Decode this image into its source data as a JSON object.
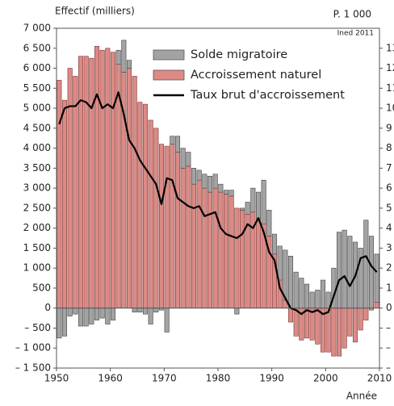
{
  "chart_data": {
    "type": "bar",
    "y_label": "Effectif (milliers)",
    "y2_label": "P. 1 000",
    "x_label": "Année",
    "source": "Ined 2011",
    "x": [
      1950,
      1951,
      1952,
      1953,
      1954,
      1955,
      1956,
      1957,
      1958,
      1959,
      1960,
      1961,
      1962,
      1963,
      1964,
      1965,
      1966,
      1967,
      1968,
      1969,
      1970,
      1971,
      1972,
      1973,
      1974,
      1975,
      1976,
      1977,
      1978,
      1979,
      1980,
      1981,
      1982,
      1983,
      1984,
      1985,
      1986,
      1987,
      1988,
      1989,
      1990,
      1991,
      1992,
      1993,
      1994,
      1995,
      1996,
      1997,
      1998,
      1999,
      2000,
      2001,
      2002,
      2003,
      2004,
      2005,
      2006,
      2007,
      2008,
      2009
    ],
    "series": [
      {
        "name": "Solde migratoire",
        "color": "#a3a3a3",
        "values": [
          -750,
          -700,
          -200,
          -150,
          -450,
          -450,
          -400,
          -300,
          -250,
          -400,
          -300,
          350,
          800,
          200,
          -100,
          -100,
          -150,
          -400,
          -100,
          -50,
          -600,
          200,
          400,
          500,
          350,
          400,
          250,
          350,
          400,
          350,
          200,
          100,
          150,
          -150,
          50,
          300,
          600,
          650,
          1100,
          650,
          500,
          850,
          1250,
          1300,
          900,
          750,
          600,
          400,
          450,
          700,
          400,
          1000,
          1900,
          1950,
          1800,
          1650,
          1500,
          2200,
          1800,
          1200
        ]
      },
      {
        "name": "Accroissement naturel",
        "color": "#dc8a86",
        "values": [
          5700,
          5200,
          6000,
          5800,
          6300,
          6300,
          6250,
          6550,
          6450,
          6500,
          6400,
          6100,
          5900,
          6000,
          5800,
          5150,
          5100,
          4700,
          4500,
          4100,
          4050,
          4100,
          3900,
          3500,
          3550,
          3100,
          3200,
          3000,
          2900,
          3000,
          2900,
          2850,
          2800,
          2500,
          2450,
          2350,
          2400,
          2250,
          2100,
          1800,
          1350,
          700,
          200,
          -350,
          -700,
          -800,
          -750,
          -800,
          -900,
          -1100,
          -1100,
          -1200,
          -1200,
          -1000,
          -700,
          -850,
          -550,
          -300,
          -50,
          150
        ]
      },
      {
        "name": "Taux brut d'accroissement",
        "color": "#000000",
        "type": "line",
        "axis": "y2",
        "values": [
          9.2,
          10,
          10.1,
          10.1,
          10.4,
          10.3,
          10,
          10.7,
          10,
          10.2,
          10,
          10.8,
          9.7,
          8.4,
          8,
          7.4,
          7,
          6.6,
          6.2,
          5.2,
          6.5,
          6.4,
          5.5,
          5.3,
          5.1,
          5,
          5.1,
          4.6,
          4.7,
          4.8,
          4,
          3.7,
          3.6,
          3.5,
          3.7,
          4.2,
          4,
          4.5,
          3.8,
          2.8,
          2.4,
          1,
          0.5,
          0,
          -0.1,
          -0.3,
          -0.1,
          -0.2,
          -0.1,
          -0.3,
          -0.2,
          0.6,
          1.4,
          1.6,
          1.1,
          1.6,
          2.5,
          2.6,
          2.1,
          1.8
        ]
      }
    ],
    "stacked": true,
    "xlim": [
      1950,
      2010
    ],
    "xticks": [
      1950,
      1960,
      1970,
      1980,
      1990,
      2000,
      2010
    ],
    "ylim": [
      -1500,
      7000
    ],
    "yticks": [
      {
        "value": -1500,
        "label": "– 1 500"
      },
      {
        "value": -1000,
        "label": "– 1 000"
      },
      {
        "value": -500,
        "label": "– 500"
      },
      0,
      500,
      {
        "value": 1000,
        "label": "1 000"
      },
      {
        "value": 1500,
        "label": "1 500"
      },
      {
        "value": 2000,
        "label": "2 000"
      },
      {
        "value": 2500,
        "label": "2 500"
      },
      {
        "value": 3000,
        "label": "3 000"
      },
      {
        "value": 3500,
        "label": "3 500"
      },
      {
        "value": 4000,
        "label": "4 000"
      },
      {
        "value": 4500,
        "label": "4 500"
      },
      {
        "value": 5000,
        "label": "5 000"
      },
      {
        "value": 5500,
        "label": "5 500"
      },
      {
        "value": 6000,
        "label": "6 000"
      },
      {
        "value": 6500,
        "label": "6 500"
      },
      {
        "value": 7000,
        "label": "7 000"
      }
    ],
    "y2lim": [
      -3,
      14
    ],
    "y2ticks": [
      {
        "value": -3,
        "label": "– 3"
      },
      {
        "value": -2,
        "label": "– 2"
      },
      {
        "value": -1,
        "label": "– 1"
      },
      0,
      1,
      2,
      3,
      4,
      5,
      6,
      7,
      8,
      9,
      10,
      11,
      12,
      13
    ],
    "grid": false,
    "legend": "top"
  }
}
